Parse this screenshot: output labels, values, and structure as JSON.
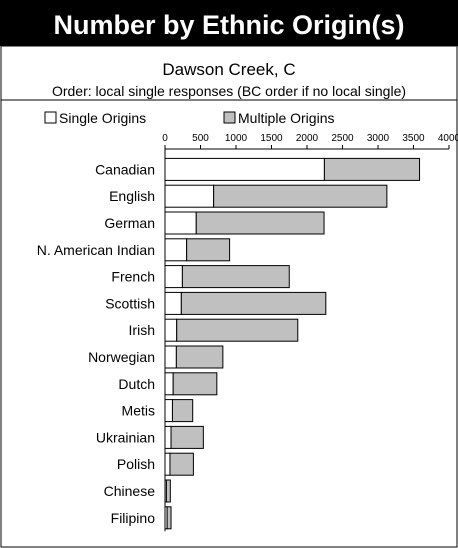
{
  "chart_data": {
    "type": "bar",
    "orientation": "horizontal",
    "stacked": true,
    "title": "Number by Ethnic Origin(s)",
    "subtitle": "Dawson Creek, C",
    "note": "Order: local single responses (BC order if no local single)",
    "categories": [
      "Canadian",
      "English",
      "German",
      "N. American Indian",
      "French",
      "Scottish",
      "Irish",
      "Norwegian",
      "Dutch",
      "Metis",
      "Ukrainian",
      "Polish",
      "Chinese",
      "Filipino"
    ],
    "series": [
      {
        "name": "Single Origins",
        "values": [
          2245,
          685,
          440,
          305,
          245,
          230,
          165,
          160,
          115,
          105,
          85,
          70,
          20,
          30
        ]
      },
      {
        "name": "Multiple Origins",
        "values": [
          1340,
          2440,
          1800,
          605,
          1505,
          2035,
          1705,
          655,
          615,
          285,
          455,
          330,
          55,
          55
        ]
      }
    ],
    "series_colors": [
      "#ffffff",
      "#c0c0c0"
    ],
    "xlim": [
      0,
      4000
    ],
    "xticks": [
      0,
      500,
      1000,
      1500,
      2000,
      2500,
      3000,
      3500,
      4000
    ],
    "grid": false,
    "legend_position": "top-left"
  }
}
